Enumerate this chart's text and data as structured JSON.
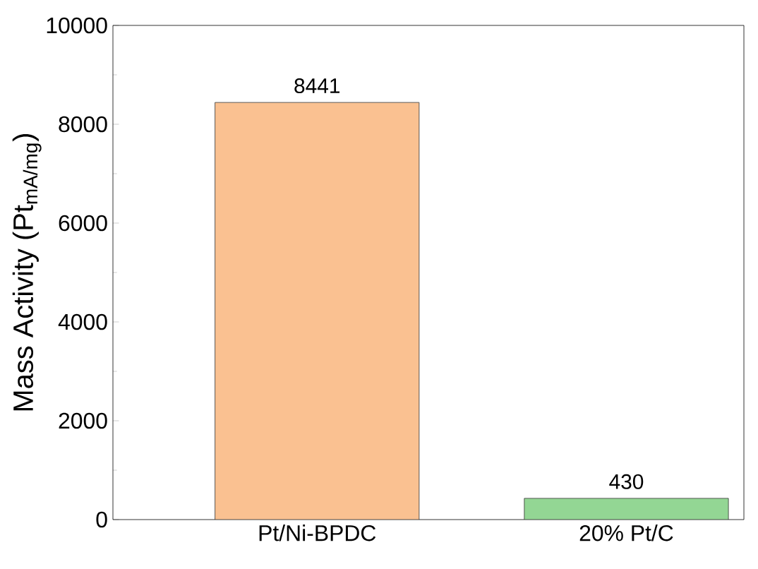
{
  "chart_data": {
    "type": "bar",
    "ylabel": "Mass Activity (Pt$_{mA/mg}$)",
    "categories": [
      "Pt/Ni-BPDC",
      "20% Pt/C"
    ],
    "values": [
      8441,
      430
    ],
    "colors": [
      "#fac191",
      "#93d694"
    ],
    "ylim": [
      0,
      10000
    ],
    "yticks": [
      0,
      2000,
      4000,
      6000,
      8000,
      10000
    ],
    "data_labels": true
  }
}
